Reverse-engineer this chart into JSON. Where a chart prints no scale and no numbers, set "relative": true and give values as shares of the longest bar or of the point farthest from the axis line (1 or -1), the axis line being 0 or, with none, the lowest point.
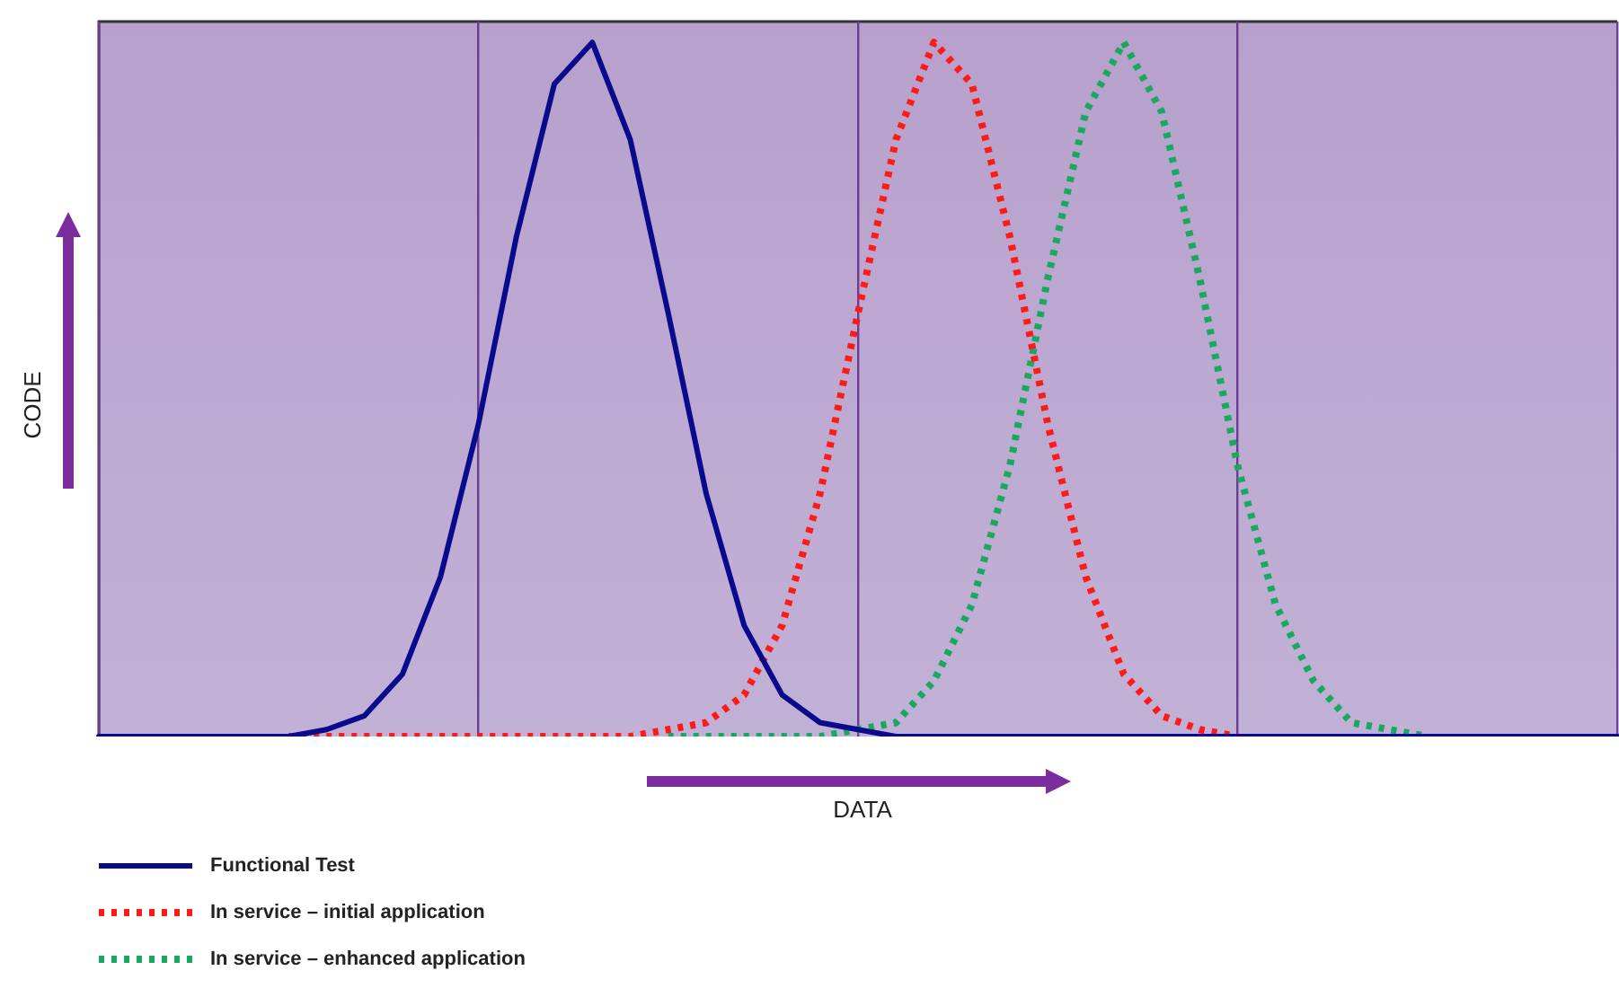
{
  "chart_data": {
    "type": "line",
    "relative": true,
    "xlabel": "DATA",
    "ylabel": "CODE",
    "categories": [
      null,
      null,
      null,
      null,
      null,
      null,
      null,
      null,
      null,
      null,
      null,
      null,
      null,
      null,
      null,
      null,
      null,
      null,
      null,
      null,
      null,
      null,
      null,
      null,
      null,
      null,
      null,
      null,
      null,
      null,
      null,
      null,
      null,
      null,
      null,
      null,
      null,
      null,
      null,
      null,
      null
    ],
    "grid": "x",
    "legend": "bottom left",
    "marker": "none",
    "series": [
      {
        "name": "Functional Test",
        "color": "#0a0a8c",
        "line_style": "solid",
        "values": [
          0,
          0,
          0,
          0,
          0,
          0,
          0.01,
          0.03,
          0.09,
          0.23,
          0.45,
          0.72,
          0.94,
          1,
          0.86,
          0.61,
          0.35,
          0.16,
          0.06,
          0.02,
          0.01,
          0,
          0,
          0,
          0,
          0,
          0,
          0,
          0,
          0,
          0,
          0,
          0,
          0,
          0,
          0,
          0,
          0,
          0,
          0,
          0
        ]
      },
      {
        "name": "In service – initial application",
        "color": "#ff1a1a",
        "line_style": "dotted",
        "values": [
          null,
          null,
          null,
          null,
          null,
          0,
          0,
          0,
          0,
          0,
          0,
          0,
          0,
          0,
          0,
          0.01,
          0.02,
          0.06,
          0.16,
          0.35,
          0.61,
          0.86,
          1,
          0.94,
          0.72,
          0.45,
          0.23,
          0.09,
          0.03,
          0.01,
          0,
          null,
          null,
          null,
          null,
          null,
          null,
          null,
          null,
          null,
          null
        ]
      },
      {
        "name": "In service – enhanced application",
        "color": "#1aa860",
        "line_style": "dotted",
        "values": [
          null,
          null,
          null,
          null,
          null,
          null,
          null,
          null,
          null,
          null,
          null,
          null,
          null,
          null,
          null,
          0,
          0,
          0,
          0,
          0,
          0.01,
          0.02,
          0.08,
          0.19,
          0.39,
          0.66,
          0.9,
          1,
          0.9,
          0.66,
          0.39,
          0.19,
          0.08,
          0.02,
          0.01,
          0,
          null,
          null,
          null,
          null,
          null
        ]
      }
    ]
  }
}
